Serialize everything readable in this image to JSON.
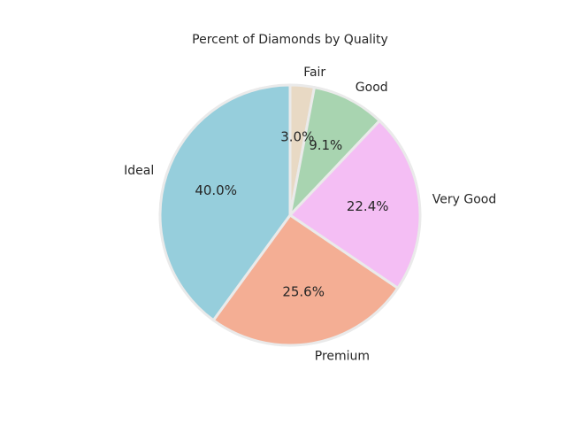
{
  "chart_data": {
    "type": "pie",
    "title": "Percent of Diamonds by Quality",
    "categories": [
      "Fair",
      "Good",
      "Very Good",
      "Premium",
      "Ideal"
    ],
    "values": [
      3.0,
      9.1,
      22.4,
      25.6,
      40.0
    ],
    "value_labels": [
      "3.0%",
      "9.1%",
      "22.4%",
      "25.6%",
      "40.0%"
    ],
    "colors": [
      "#e8d9c4",
      "#a8d4b0",
      "#f4bef4",
      "#f4ae94",
      "#96cedc"
    ],
    "start_angle_deg": 90,
    "direction": "clockwise",
    "edge_color": "#eaeaea",
    "legend": "none",
    "grid": false
  }
}
